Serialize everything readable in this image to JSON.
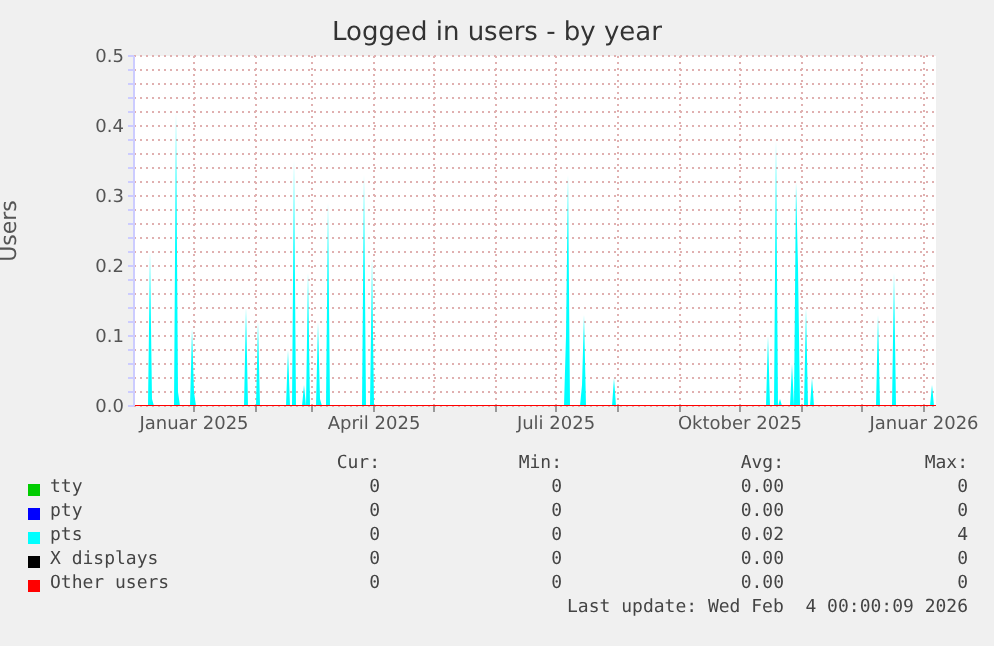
{
  "chart_data": {
    "type": "area",
    "title": "Logged in users - by year",
    "ylabel": "Users",
    "xlim": [
      "2024-12-02",
      "2026-01-07"
    ],
    "xticks": [
      {
        "value": "2025-01-01",
        "label": "Januar 2025"
      },
      {
        "value": "2025-02-01",
        "label": null
      },
      {
        "value": "2025-03-01",
        "label": null
      },
      {
        "value": "2025-04-01",
        "label": "April 2025"
      },
      {
        "value": "2025-05-01",
        "label": null
      },
      {
        "value": "2025-06-01",
        "label": null
      },
      {
        "value": "2025-07-01",
        "label": "Juli 2025"
      },
      {
        "value": "2025-08-01",
        "label": null
      },
      {
        "value": "2025-09-01",
        "label": null
      },
      {
        "value": "2025-10-01",
        "label": "Oktober 2025"
      },
      {
        "value": "2025-11-01",
        "label": null
      },
      {
        "value": "2025-12-01",
        "label": null
      },
      {
        "value": "2026-01-01",
        "label": "Januar 2026"
      }
    ],
    "ylim": [
      0,
      0.5
    ],
    "yticks": [
      {
        "value": 0,
        "label": "0.0"
      },
      {
        "value": 0.02,
        "label": null
      },
      {
        "value": 0.04,
        "label": null
      },
      {
        "value": 0.06,
        "label": null
      },
      {
        "value": 0.08,
        "label": null
      },
      0.1,
      {
        "value": 0.12,
        "label": null
      },
      {
        "value": 0.14,
        "label": null
      },
      {
        "value": 0.16,
        "label": null
      },
      {
        "value": 0.18,
        "label": null
      },
      0.2,
      {
        "value": 0.22,
        "label": null
      },
      {
        "value": 0.24,
        "label": null
      },
      {
        "value": 0.26,
        "label": null
      },
      {
        "value": 0.28,
        "label": null
      },
      0.3,
      {
        "value": 0.32,
        "label": null
      },
      {
        "value": 0.34,
        "label": null
      },
      {
        "value": 0.36,
        "label": null
      },
      {
        "value": 0.38,
        "label": null
      },
      0.4,
      {
        "value": 0.42,
        "label": null
      },
      {
        "value": 0.44,
        "label": null
      },
      {
        "value": 0.46,
        "label": null
      },
      {
        "value": 0.48,
        "label": null
      },
      0.5
    ],
    "grid": true,
    "legend": "bottom",
    "series": [
      {
        "name": "tty",
        "color": "#00cc00"
      },
      {
        "name": "pty",
        "color": "#0000ff"
      },
      {
        "name": "pts",
        "color": "#00ffff",
        "x": [
          "2024-12-02",
          "2024-12-09",
          "2024-12-10",
          "2024-12-11",
          "2024-12-12",
          "2024-12-22",
          "2024-12-23",
          "2024-12-24",
          "2024-12-25",
          "2024-12-30",
          "2024-12-31",
          "2025-01-01",
          "2025-01-02",
          "2025-01-26",
          "2025-01-27",
          "2025-01-28",
          "2025-02-01",
          "2025-02-02",
          "2025-02-03",
          "2025-02-16",
          "2025-02-17",
          "2025-02-18",
          "2025-02-19",
          "2025-02-20",
          "2025-02-21",
          "2025-02-24",
          "2025-02-25",
          "2025-02-26",
          "2025-02-27",
          "2025-02-28",
          "2025-03-03",
          "2025-03-04",
          "2025-03-05",
          "2025-03-06",
          "2025-03-08",
          "2025-03-09",
          "2025-03-10",
          "2025-03-26",
          "2025-03-27",
          "2025-03-28",
          "2025-03-30",
          "2025-03-31",
          "2025-04-01",
          "2025-07-05",
          "2025-07-06",
          "2025-07-07",
          "2025-07-08",
          "2025-07-13",
          "2025-07-14",
          "2025-07-15",
          "2025-07-16",
          "2025-07-29",
          "2025-07-30",
          "2025-07-31",
          "2025-10-14",
          "2025-10-15",
          "2025-10-16",
          "2025-10-18",
          "2025-10-19",
          "2025-10-20",
          "2025-10-21",
          "2025-10-22",
          "2025-10-26",
          "2025-10-27",
          "2025-10-28",
          "2025-10-29",
          "2025-10-30",
          "2025-10-31",
          "2025-11-02",
          "2025-11-03",
          "2025-11-04",
          "2025-11-05",
          "2025-11-06",
          "2025-11-07",
          "2025-12-08",
          "2025-12-09",
          "2025-12-10",
          "2025-12-16",
          "2025-12-17",
          "2025-12-18",
          "2026-01-04",
          "2026-01-05",
          "2026-01-06",
          "2026-01-07"
        ],
        "values": [
          0,
          0,
          0.22,
          0.01,
          0,
          0,
          0.42,
          0.02,
          0,
          0,
          0.11,
          0.02,
          0,
          0,
          0.14,
          0,
          0,
          0.12,
          0,
          0,
          0.08,
          0,
          0,
          0.35,
          0,
          0,
          0.03,
          0,
          0.19,
          0,
          0,
          0.12,
          0.01,
          0,
          0,
          0.29,
          0,
          0,
          0.33,
          0,
          0,
          0.21,
          0,
          0,
          0.1,
          0.33,
          0,
          0,
          0.03,
          0.13,
          0,
          0,
          0.04,
          0,
          0,
          0.1,
          0,
          0,
          0.38,
          0,
          0.01,
          0,
          0,
          0.06,
          0,
          0.32,
          0.2,
          0,
          0,
          0.14,
          0,
          0,
          0.04,
          0,
          0,
          0.13,
          0,
          0,
          0.19,
          0,
          0,
          0.03,
          0,
          0
        ]
      },
      {
        "name": "X displays",
        "color": "#000000"
      },
      {
        "name": "Other users",
        "type": "line",
        "color": "#ff0000",
        "x": [
          "2024-12-02",
          "2026-01-07"
        ],
        "values": [
          0,
          0
        ]
      }
    ],
    "annotations": [
      "Cur:",
      "Min:",
      "Avg:",
      "Max:",
      "0",
      "0",
      "0.00",
      "0",
      "0",
      "0",
      "0.00",
      "0",
      "0",
      "0",
      "0.02",
      "4",
      "0",
      "0",
      "0.00",
      "0",
      "0",
      "0",
      "0.00",
      "0",
      "Last update: Wed Feb  4 00:00:09 2026"
    ]
  }
}
